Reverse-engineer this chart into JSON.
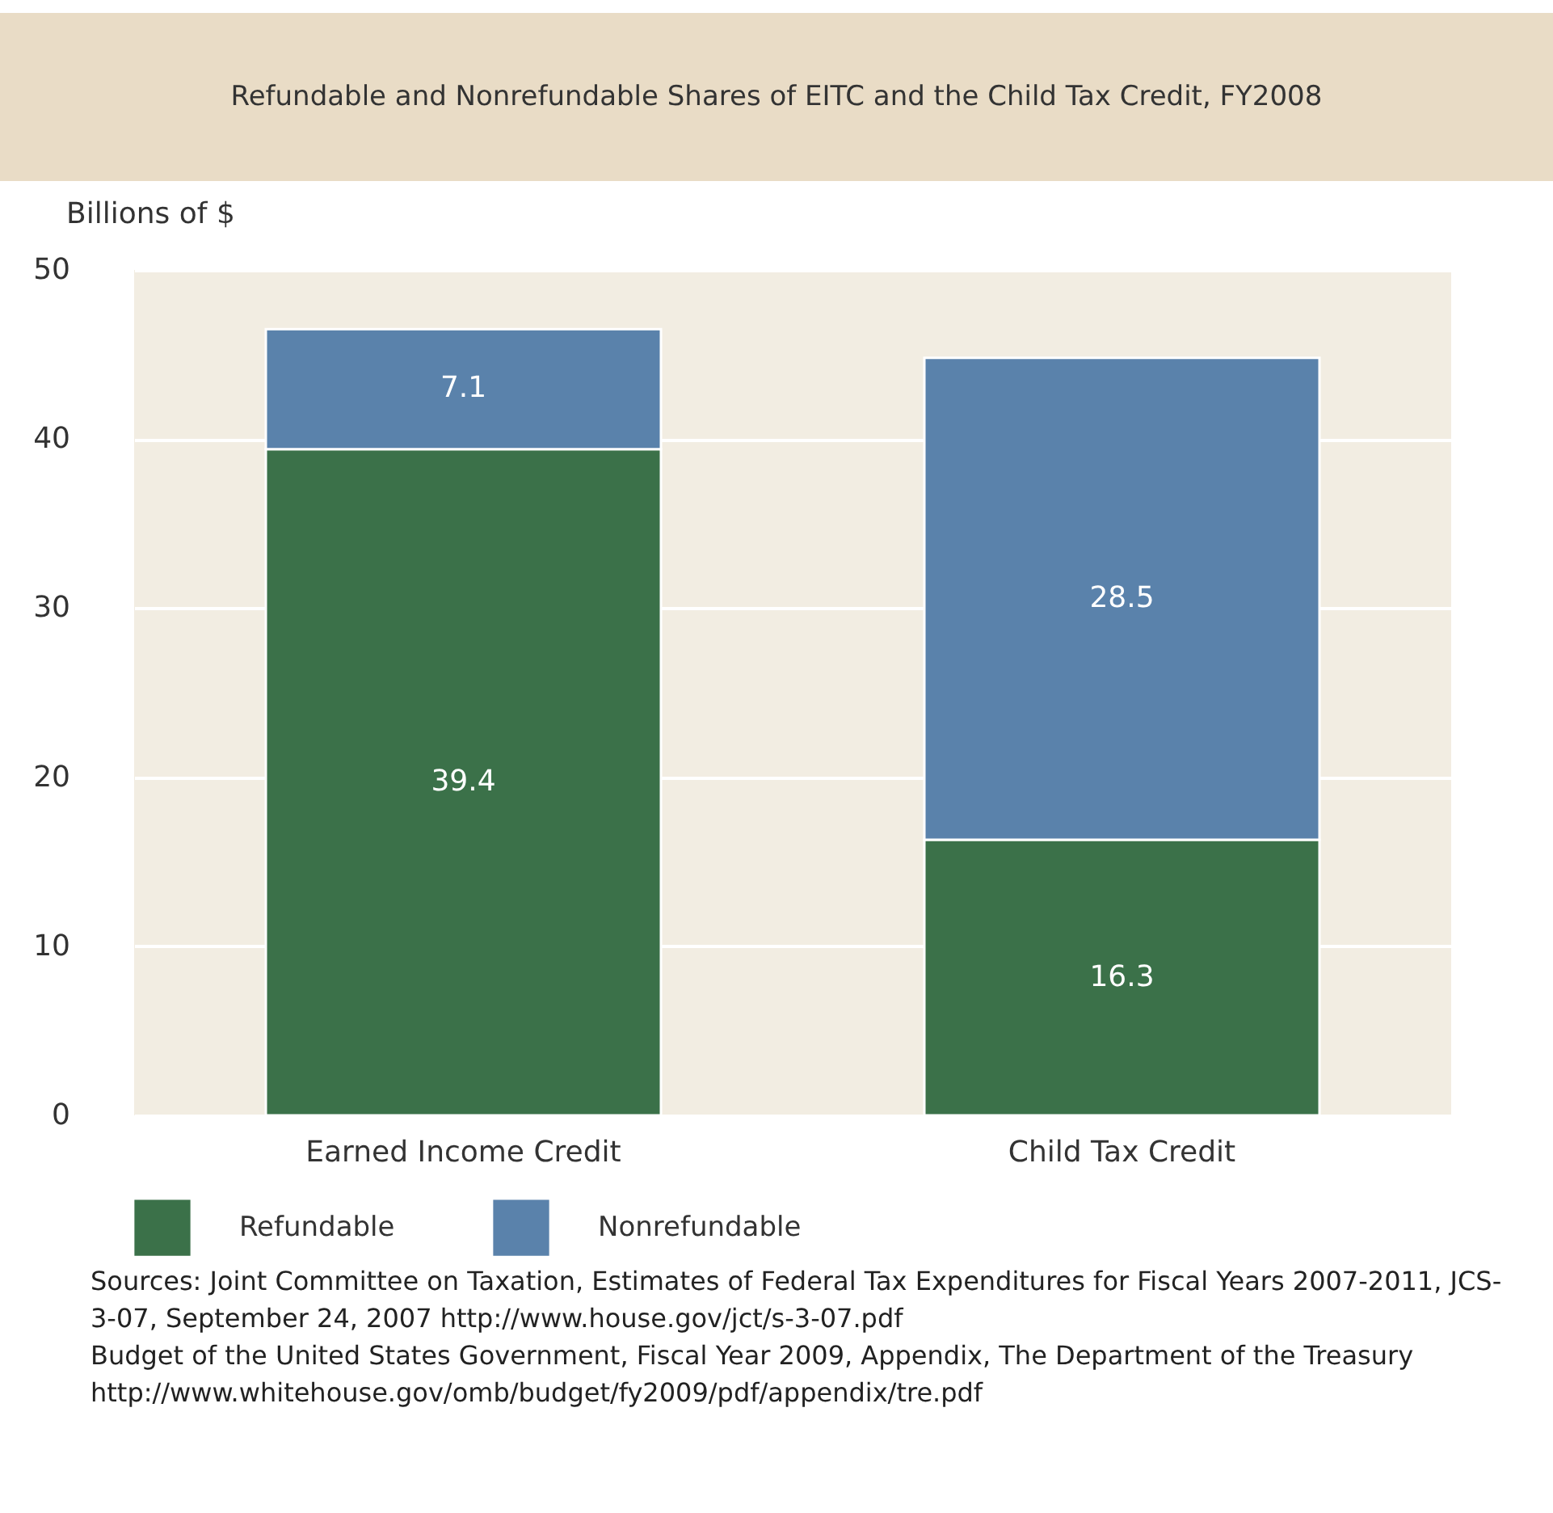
{
  "chart_data": {
    "type": "bar",
    "title": "Refundable and Nonrefundable Shares of EITC and the Child Tax Credit, FY2008",
    "ylabel": "Billions of $",
    "categories": [
      "Earned Income Credit",
      "Child Tax Credit"
    ],
    "series": [
      {
        "name": "Refundable",
        "color": "#3b7149",
        "values": [
          39.4,
          16.3
        ]
      },
      {
        "name": "Nonrefundable",
        "color": "#5a82ab",
        "values": [
          7.1,
          28.5
        ]
      }
    ],
    "stacked": true,
    "data_labels": true,
    "ylim": [
      0,
      50
    ],
    "yticks": [
      0,
      10,
      20,
      30,
      40,
      50
    ],
    "grid": "y",
    "legend": "bottom",
    "annotations": [
      "Sources:  Joint Committee on Taxation, Estimates of Federal Tax Expenditures for Fiscal Years 2007-2011, JCS-3-07, September 24, 2007 http://www.house.gov/jct/s-3-07.pdf",
      "Budget of the United States Government, Fiscal Year 2009, Appendix, The Department of the Treasury http://www.whitehouse.gov/omb/budget/fy2009/pdf/appendix/tre.pdf"
    ]
  }
}
